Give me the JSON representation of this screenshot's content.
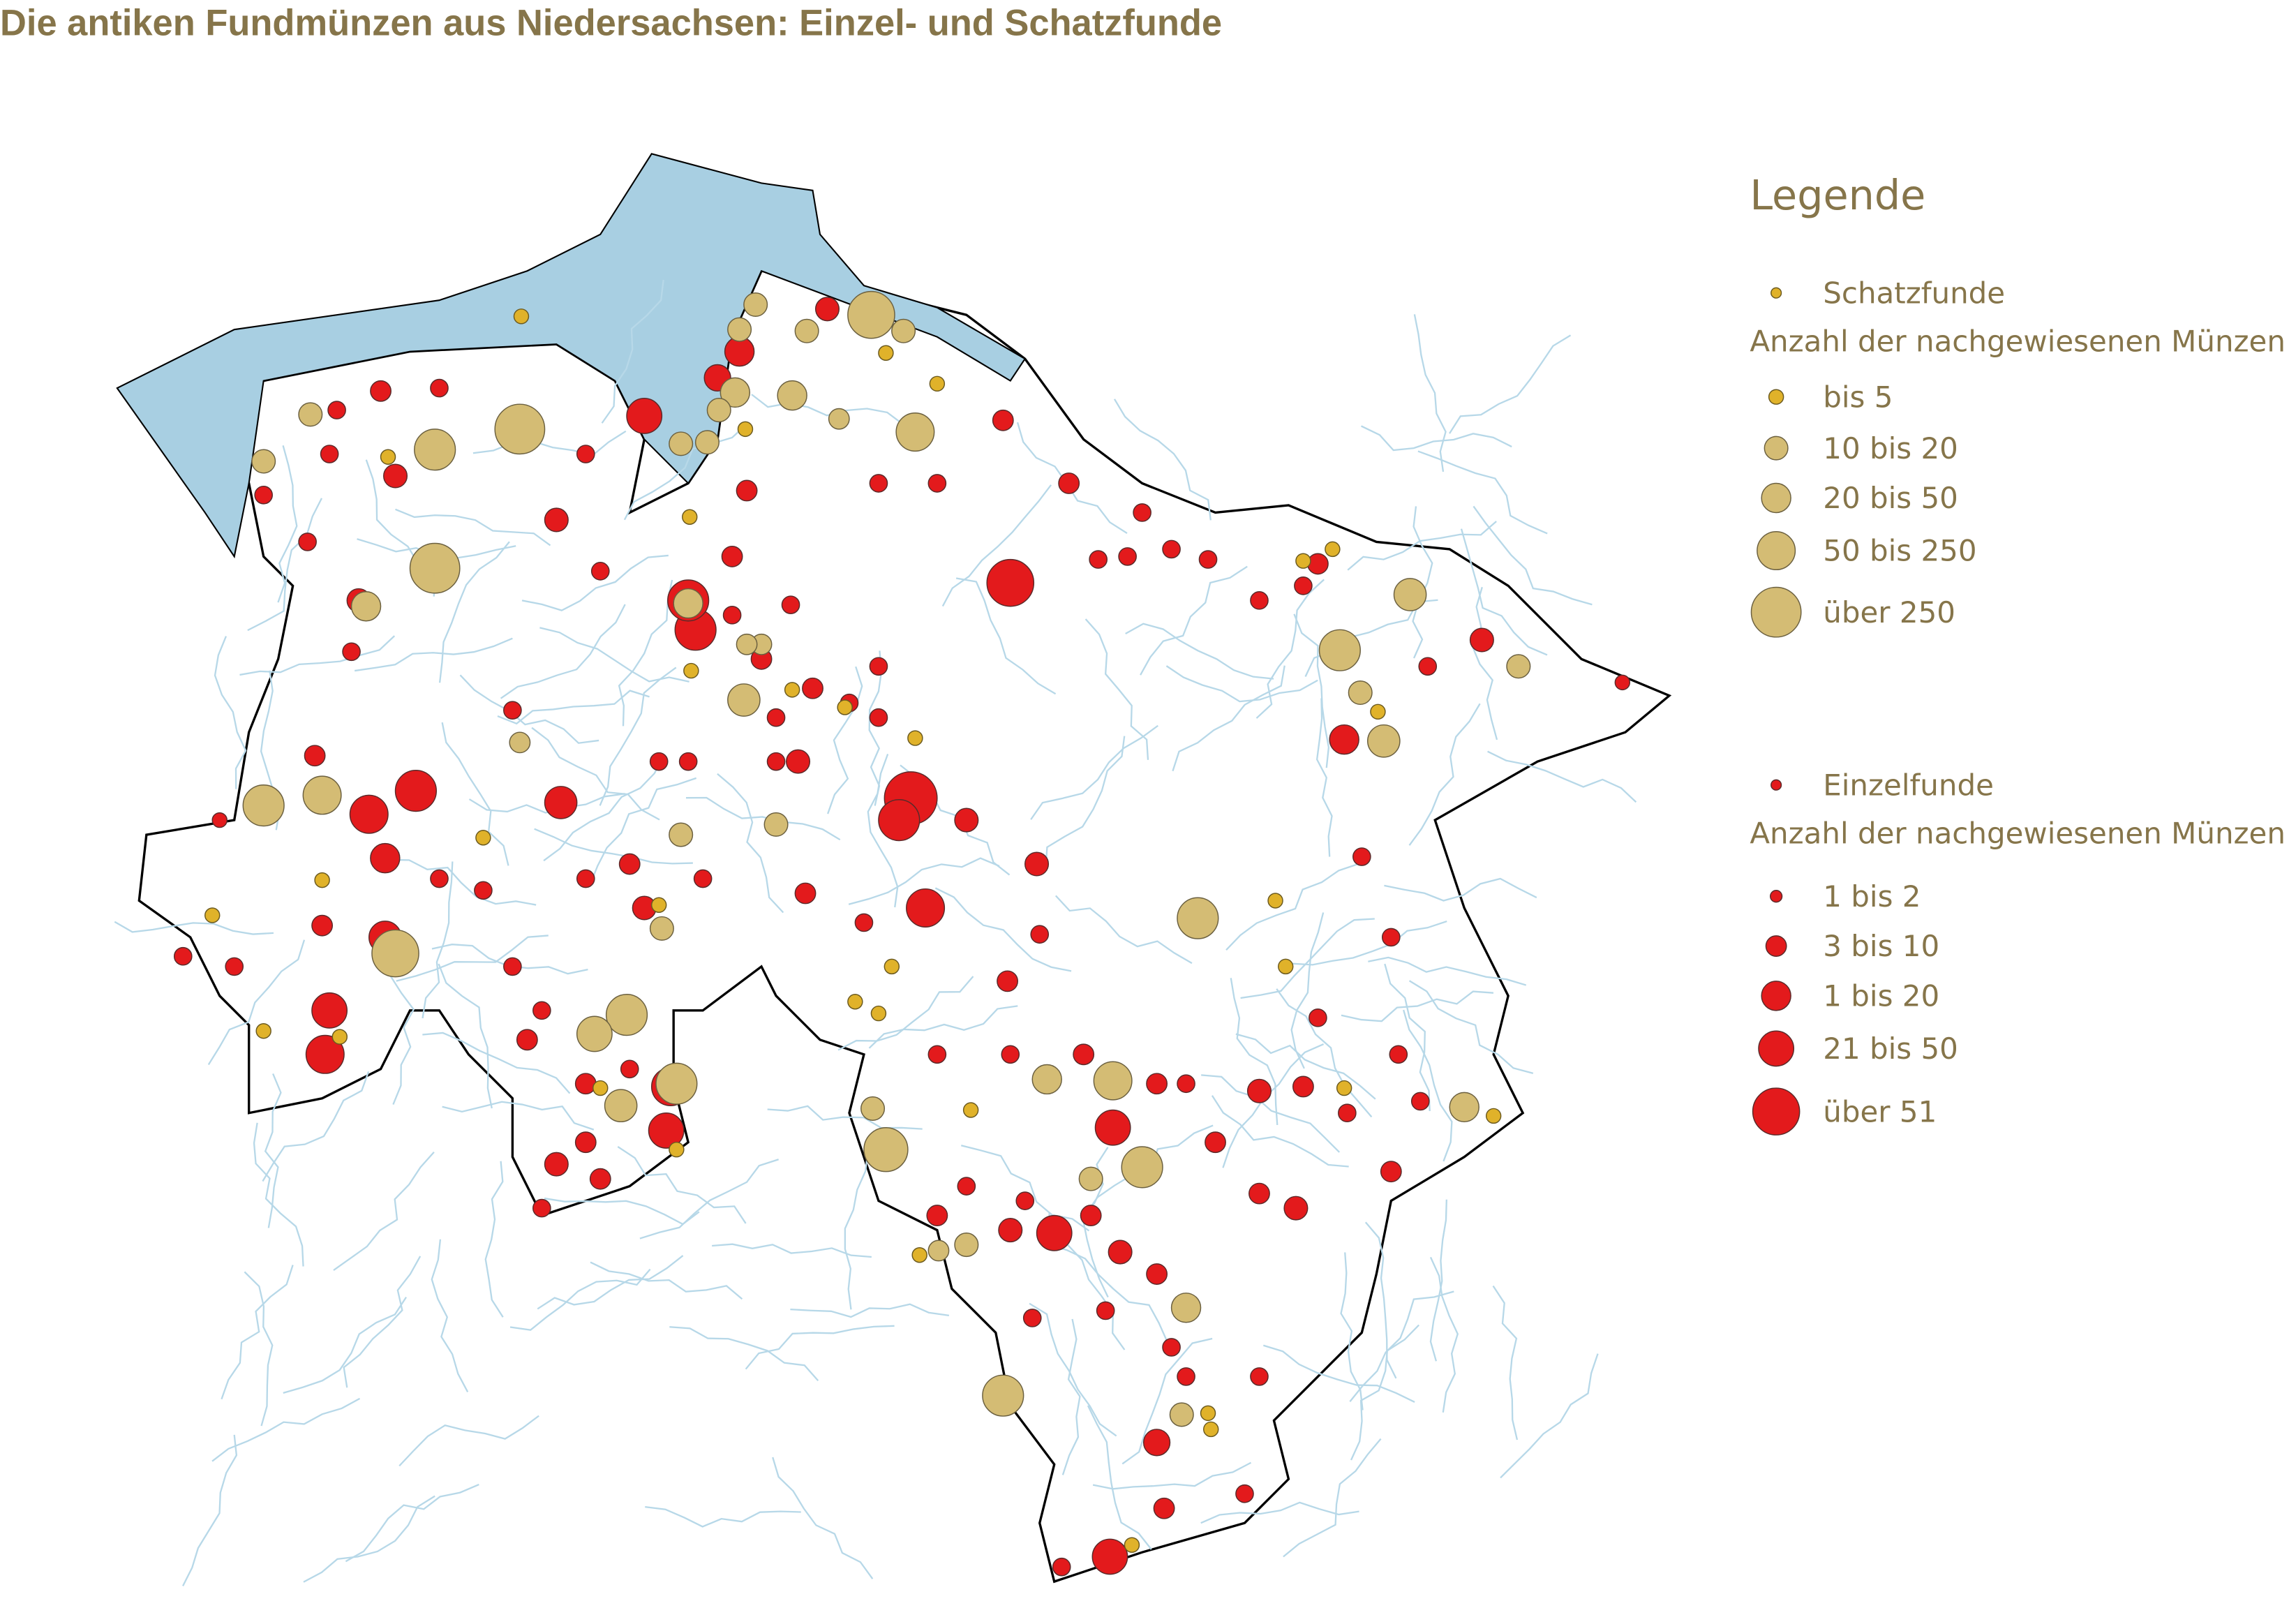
{
  "title": "Die antiken Fundmünzen aus Niedersachsen: Einzel- und Schatzfunde",
  "legend": {
    "title": "Legende",
    "sections": [
      {
        "name": "Schatzfunde",
        "subtitle": "Anzahl der nachgewiesenen Münzen",
        "items": [
          "bis 5",
          "10 bis 20",
          "20 bis 50",
          "50 bis 250",
          "über 250"
        ]
      },
      {
        "name": "Einzelfunde",
        "subtitle": "Anzahl der nachgewiesenen Münzen",
        "items": [
          "1 bis 2",
          "3 bis 10",
          "1 bis 20",
          "21 bis 50",
          "über 51"
        ]
      }
    ]
  }
}
